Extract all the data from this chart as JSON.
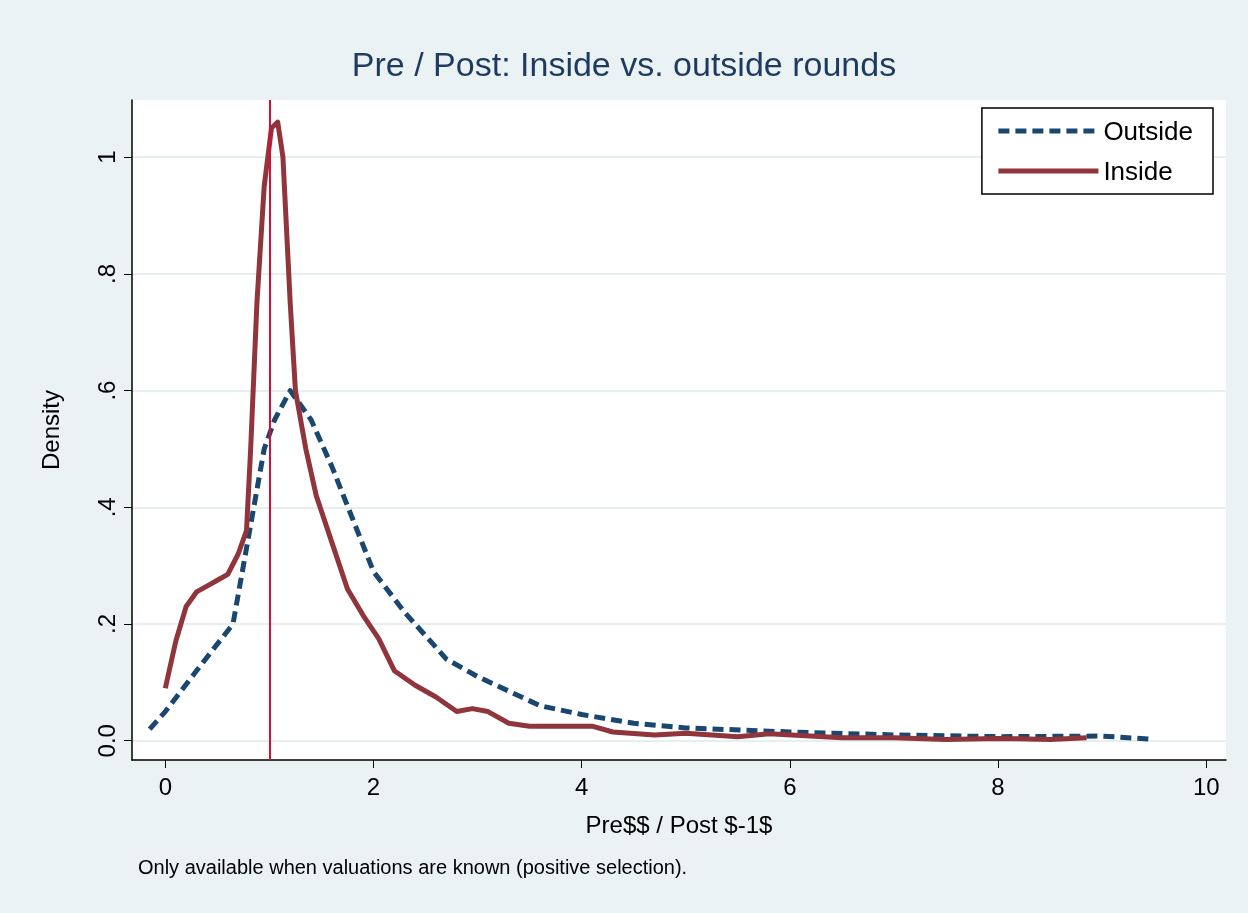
{
  "chart_data": {
    "type": "line",
    "title": "Pre / Post: Inside vs. outside rounds",
    "xlabel": "Pre$$ / Post $-1$",
    "ylabel": "Density",
    "annotations": [
      "Only available when valuations are known (positive selection)."
    ],
    "xlim": [
      -0.32,
      10.19
    ],
    "xticks": [
      0,
      2,
      4,
      6,
      8,
      10
    ],
    "ylim": [
      -0.033,
      1.098
    ],
    "yticks": [
      {
        "value": 0,
        "label": "0.0"
      },
      {
        "value": 0.2,
        "label": ".2"
      },
      {
        "value": 0.4,
        "label": ".4"
      },
      {
        "value": 0.6,
        "label": ".6"
      },
      {
        "value": 0.8,
        "label": ".8"
      },
      1
    ],
    "grid": "y",
    "legend": "top right",
    "ref_lines": [
      {
        "axis": "x",
        "value": 1,
        "color": "#d0103a"
      }
    ],
    "series": [
      {
        "name": "Outside",
        "color": "#1a476f",
        "line_style": "dashed",
        "x": [
          -0.15,
          0,
          0.3,
          0.65,
          0.8,
          0.95,
          1.05,
          1.2,
          1.4,
          1.6,
          1.8,
          2,
          2.3,
          2.7,
          3,
          3.3,
          3.6,
          4,
          4.5,
          5,
          6,
          7,
          8,
          9,
          9.45
        ],
        "values": [
          0.02,
          0.05,
          0.12,
          0.2,
          0.35,
          0.5,
          0.55,
          0.6,
          0.55,
          0.47,
          0.38,
          0.29,
          0.22,
          0.14,
          0.11,
          0.085,
          0.06,
          0.045,
          0.03,
          0.022,
          0.015,
          0.01,
          0.007,
          0.008,
          0.003
        ]
      },
      {
        "name": "Inside",
        "color": "#90353b",
        "line_style": "solid",
        "x": [
          0,
          0.1,
          0.2,
          0.3,
          0.4,
          0.5,
          0.6,
          0.7,
          0.78,
          0.82,
          0.88,
          0.95,
          1.02,
          1.08,
          1.13,
          1.2,
          1.25,
          1.35,
          1.45,
          1.6,
          1.75,
          1.9,
          2.05,
          2.2,
          2.4,
          2.6,
          2.8,
          2.95,
          3.1,
          3.3,
          3.5,
          3.7,
          3.9,
          4.1,
          4.3,
          4.7,
          5,
          5.5,
          5.8,
          6.5,
          7,
          7.5,
          8,
          8.5,
          8.85
        ],
        "values": [
          0.09,
          0.17,
          0.23,
          0.255,
          0.265,
          0.275,
          0.285,
          0.32,
          0.36,
          0.5,
          0.75,
          0.95,
          1.05,
          1.06,
          1.0,
          0.75,
          0.6,
          0.5,
          0.42,
          0.34,
          0.26,
          0.215,
          0.175,
          0.12,
          0.095,
          0.075,
          0.05,
          0.055,
          0.05,
          0.03,
          0.025,
          0.025,
          0.025,
          0.025,
          0.015,
          0.01,
          0.013,
          0.007,
          0.012,
          0.005,
          0.005,
          0.002,
          0.004,
          0.002,
          0.005
        ]
      }
    ]
  }
}
